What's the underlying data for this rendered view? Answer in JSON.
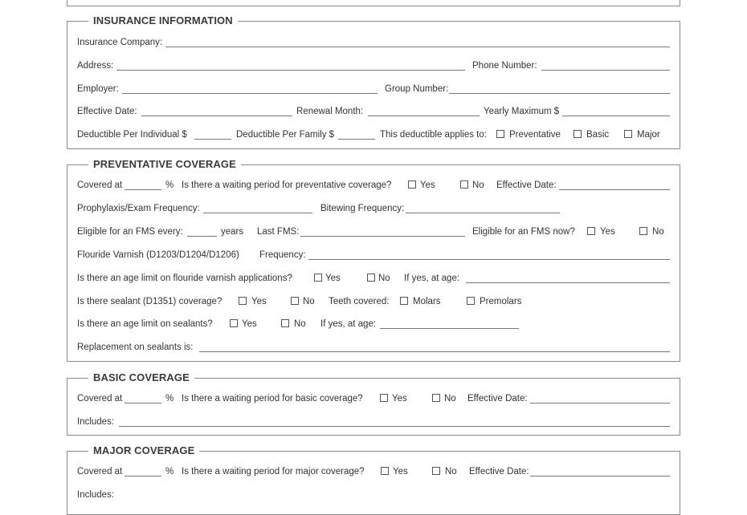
{
  "insurance": {
    "title": "INSURANCE INFORMATION",
    "company": "Insurance Company:",
    "address": "Address:",
    "phone": "Phone Number:",
    "employer": "Employer:",
    "group": "Group Number:",
    "effective_date": "Effective Date:",
    "renewal": "Renewal Month:",
    "yearly_max": "Yearly Maximum $",
    "ded_individual": "Deductible Per Individual $",
    "ded_family": "Deductible Per Family $",
    "applies_to": "This deductible applies to:",
    "opt_preventative": "Preventative",
    "opt_basic": "Basic",
    "opt_major": "Major"
  },
  "preventative": {
    "title": "PREVENTATIVE COVERAGE",
    "covered_at": "Covered at",
    "percent": "%",
    "waiting_q": "Is there a waiting period for preventative coverage?",
    "yes": "Yes",
    "no": "No",
    "effective_date": "Effective Date:",
    "prophylaxis": "Prophylaxis/Exam Frequency:",
    "bitewing": "Bitewing Frequency:",
    "fms_every": "Eligible for an FMS every:",
    "years": "years",
    "last_fms": "Last FMS:",
    "fms_now": "Eligible for an FMS now?",
    "varnish": "Flouride Varnish (D1203/D1204/D1206)",
    "frequency": "Frequency:",
    "varnish_age_q": "Is there an age limit on flouride varnish applications?",
    "if_yes_age": "If yes, at age:",
    "sealant_q": "Is there sealant (D1351) coverage?",
    "teeth_covered": "Teeth covered:",
    "molars": "Molars",
    "premolars": "Premolars",
    "sealant_age_q": "Is there an age limit on sealants?",
    "replacement": "Replacement on sealants is:"
  },
  "basic": {
    "title": "BASIC COVERAGE",
    "covered_at": "Covered at",
    "percent": "%",
    "waiting_q": "Is there a waiting period for basic coverage?",
    "yes": "Yes",
    "no": "No",
    "effective_date": "Effective Date:",
    "includes": "Includes:"
  },
  "major": {
    "title": "MAJOR COVERAGE",
    "covered_at": "Covered at",
    "percent": "%",
    "waiting_q": "Is there a waiting period for major coverage?",
    "yes": "Yes",
    "no": "No",
    "effective_date": "Effective Date:",
    "includes": "Includes:"
  }
}
